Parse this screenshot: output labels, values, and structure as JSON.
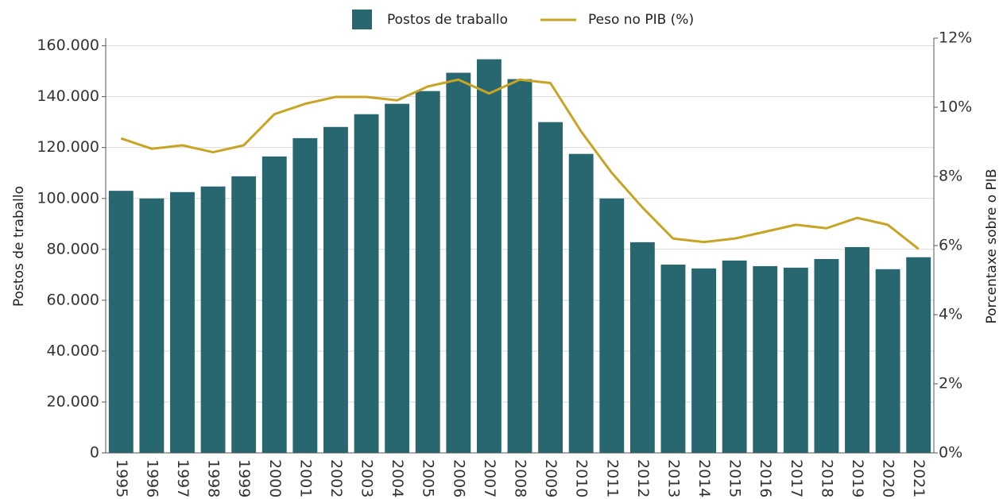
{
  "chart_data": {
    "type": "bar_line",
    "categories": [
      "1995",
      "1996",
      "1997",
      "1998",
      "1999",
      "2000",
      "2001",
      "2002",
      "2003",
      "2004",
      "2005",
      "2006",
      "2007",
      "2008",
      "2009",
      "2010",
      "2011",
      "2012",
      "2013",
      "2014",
      "2015",
      "2016",
      "2017",
      "2018",
      "2019",
      "2020",
      "2021"
    ],
    "series": [
      {
        "name": "Postos de traballo",
        "type": "bar",
        "color": "#286670",
        "axis": "y",
        "values": [
          103000,
          100000,
          102500,
          104700,
          108700,
          116500,
          123700,
          128100,
          133100,
          137200,
          142200,
          149400,
          154700,
          146900,
          130000,
          117500,
          100000,
          82800,
          74000,
          72500,
          75600,
          73400,
          72800,
          76200,
          80900,
          72200,
          76900
        ]
      },
      {
        "name": "Peso no PIB (%)",
        "type": "line",
        "color": "#c8a425",
        "axis": "y2",
        "values": [
          9.1,
          8.8,
          8.9,
          8.7,
          8.9,
          9.8,
          10.1,
          10.3,
          10.3,
          10.2,
          10.6,
          10.8,
          10.4,
          10.8,
          10.7,
          9.3,
          8.1,
          7.1,
          6.2,
          6.1,
          6.2,
          6.4,
          6.6,
          6.5,
          6.8,
          6.6,
          5.9
        ]
      }
    ],
    "ylabel": "Postos de traballo",
    "y2label": "Porcentaxe sobre o PIB",
    "ylim": [
      0,
      163000
    ],
    "yticks": [
      0,
      {
        "value": 20000,
        "label": "20.000"
      },
      {
        "value": 40000,
        "label": "40.000"
      },
      {
        "value": 60000,
        "label": "60.000"
      },
      {
        "value": 80000,
        "label": "80.000"
      },
      {
        "value": 100000,
        "label": "100.000"
      },
      {
        "value": 120000,
        "label": "120.000"
      },
      {
        "value": 140000,
        "label": "140.000"
      },
      {
        "value": 160000,
        "label": "160.000"
      }
    ],
    "y2lim": [
      0,
      12
    ],
    "y2ticks": [
      {
        "value": 0,
        "label": "0%"
      },
      {
        "value": 2,
        "label": "2%"
      },
      {
        "value": 4,
        "label": "4%"
      },
      {
        "value": 6,
        "label": "6%"
      },
      {
        "value": 8,
        "label": "8%"
      },
      {
        "value": 10,
        "label": "10%"
      },
      {
        "value": 12,
        "label": "12%"
      }
    ],
    "grid": true,
    "legend": "top"
  }
}
